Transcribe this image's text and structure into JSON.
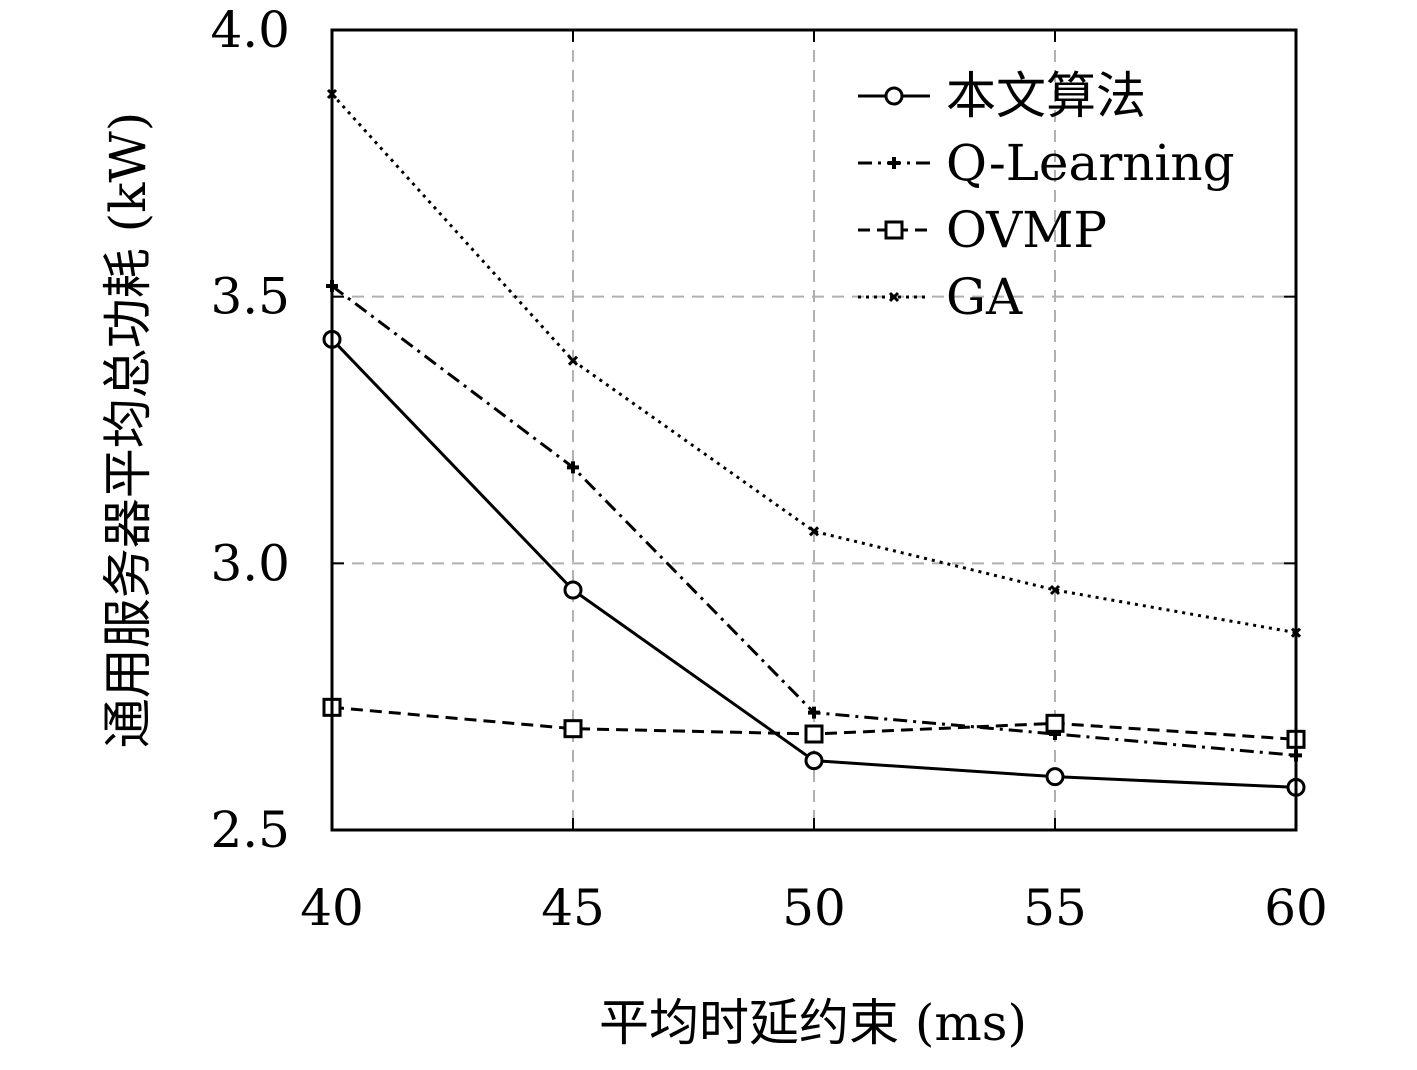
{
  "chart_data": {
    "type": "line",
    "xlabel": "平均时延约束 (ms)",
    "ylabel": "通用服务器平均总功耗 (kW)",
    "x": [
      40,
      45,
      50,
      55,
      60
    ],
    "xlim": [
      40,
      60
    ],
    "ylim": [
      2.5,
      4.0
    ],
    "xticks": [
      "40",
      "45",
      "50",
      "55",
      "60"
    ],
    "yticks": [
      "2.5",
      "3.0",
      "3.5",
      "4.0"
    ],
    "grid": true,
    "legend_position": "top-right",
    "series": [
      {
        "name": "本文算法",
        "values": [
          3.42,
          2.95,
          2.63,
          2.6,
          2.58
        ],
        "linestyle": "solid",
        "marker": "circle",
        "color": "#000000"
      },
      {
        "name": "Q-Learning",
        "values": [
          3.52,
          3.18,
          2.72,
          2.68,
          2.64
        ],
        "linestyle": "dashdot",
        "marker": "plus",
        "color": "#000000"
      },
      {
        "name": "OVMP",
        "values": [
          2.73,
          2.69,
          2.68,
          2.7,
          2.67
        ],
        "linestyle": "dashed",
        "marker": "square",
        "color": "#000000"
      },
      {
        "name": "GA",
        "values": [
          3.88,
          3.38,
          3.06,
          2.95,
          2.87
        ],
        "linestyle": "dotted",
        "marker": "cross",
        "color": "#000000"
      }
    ]
  }
}
